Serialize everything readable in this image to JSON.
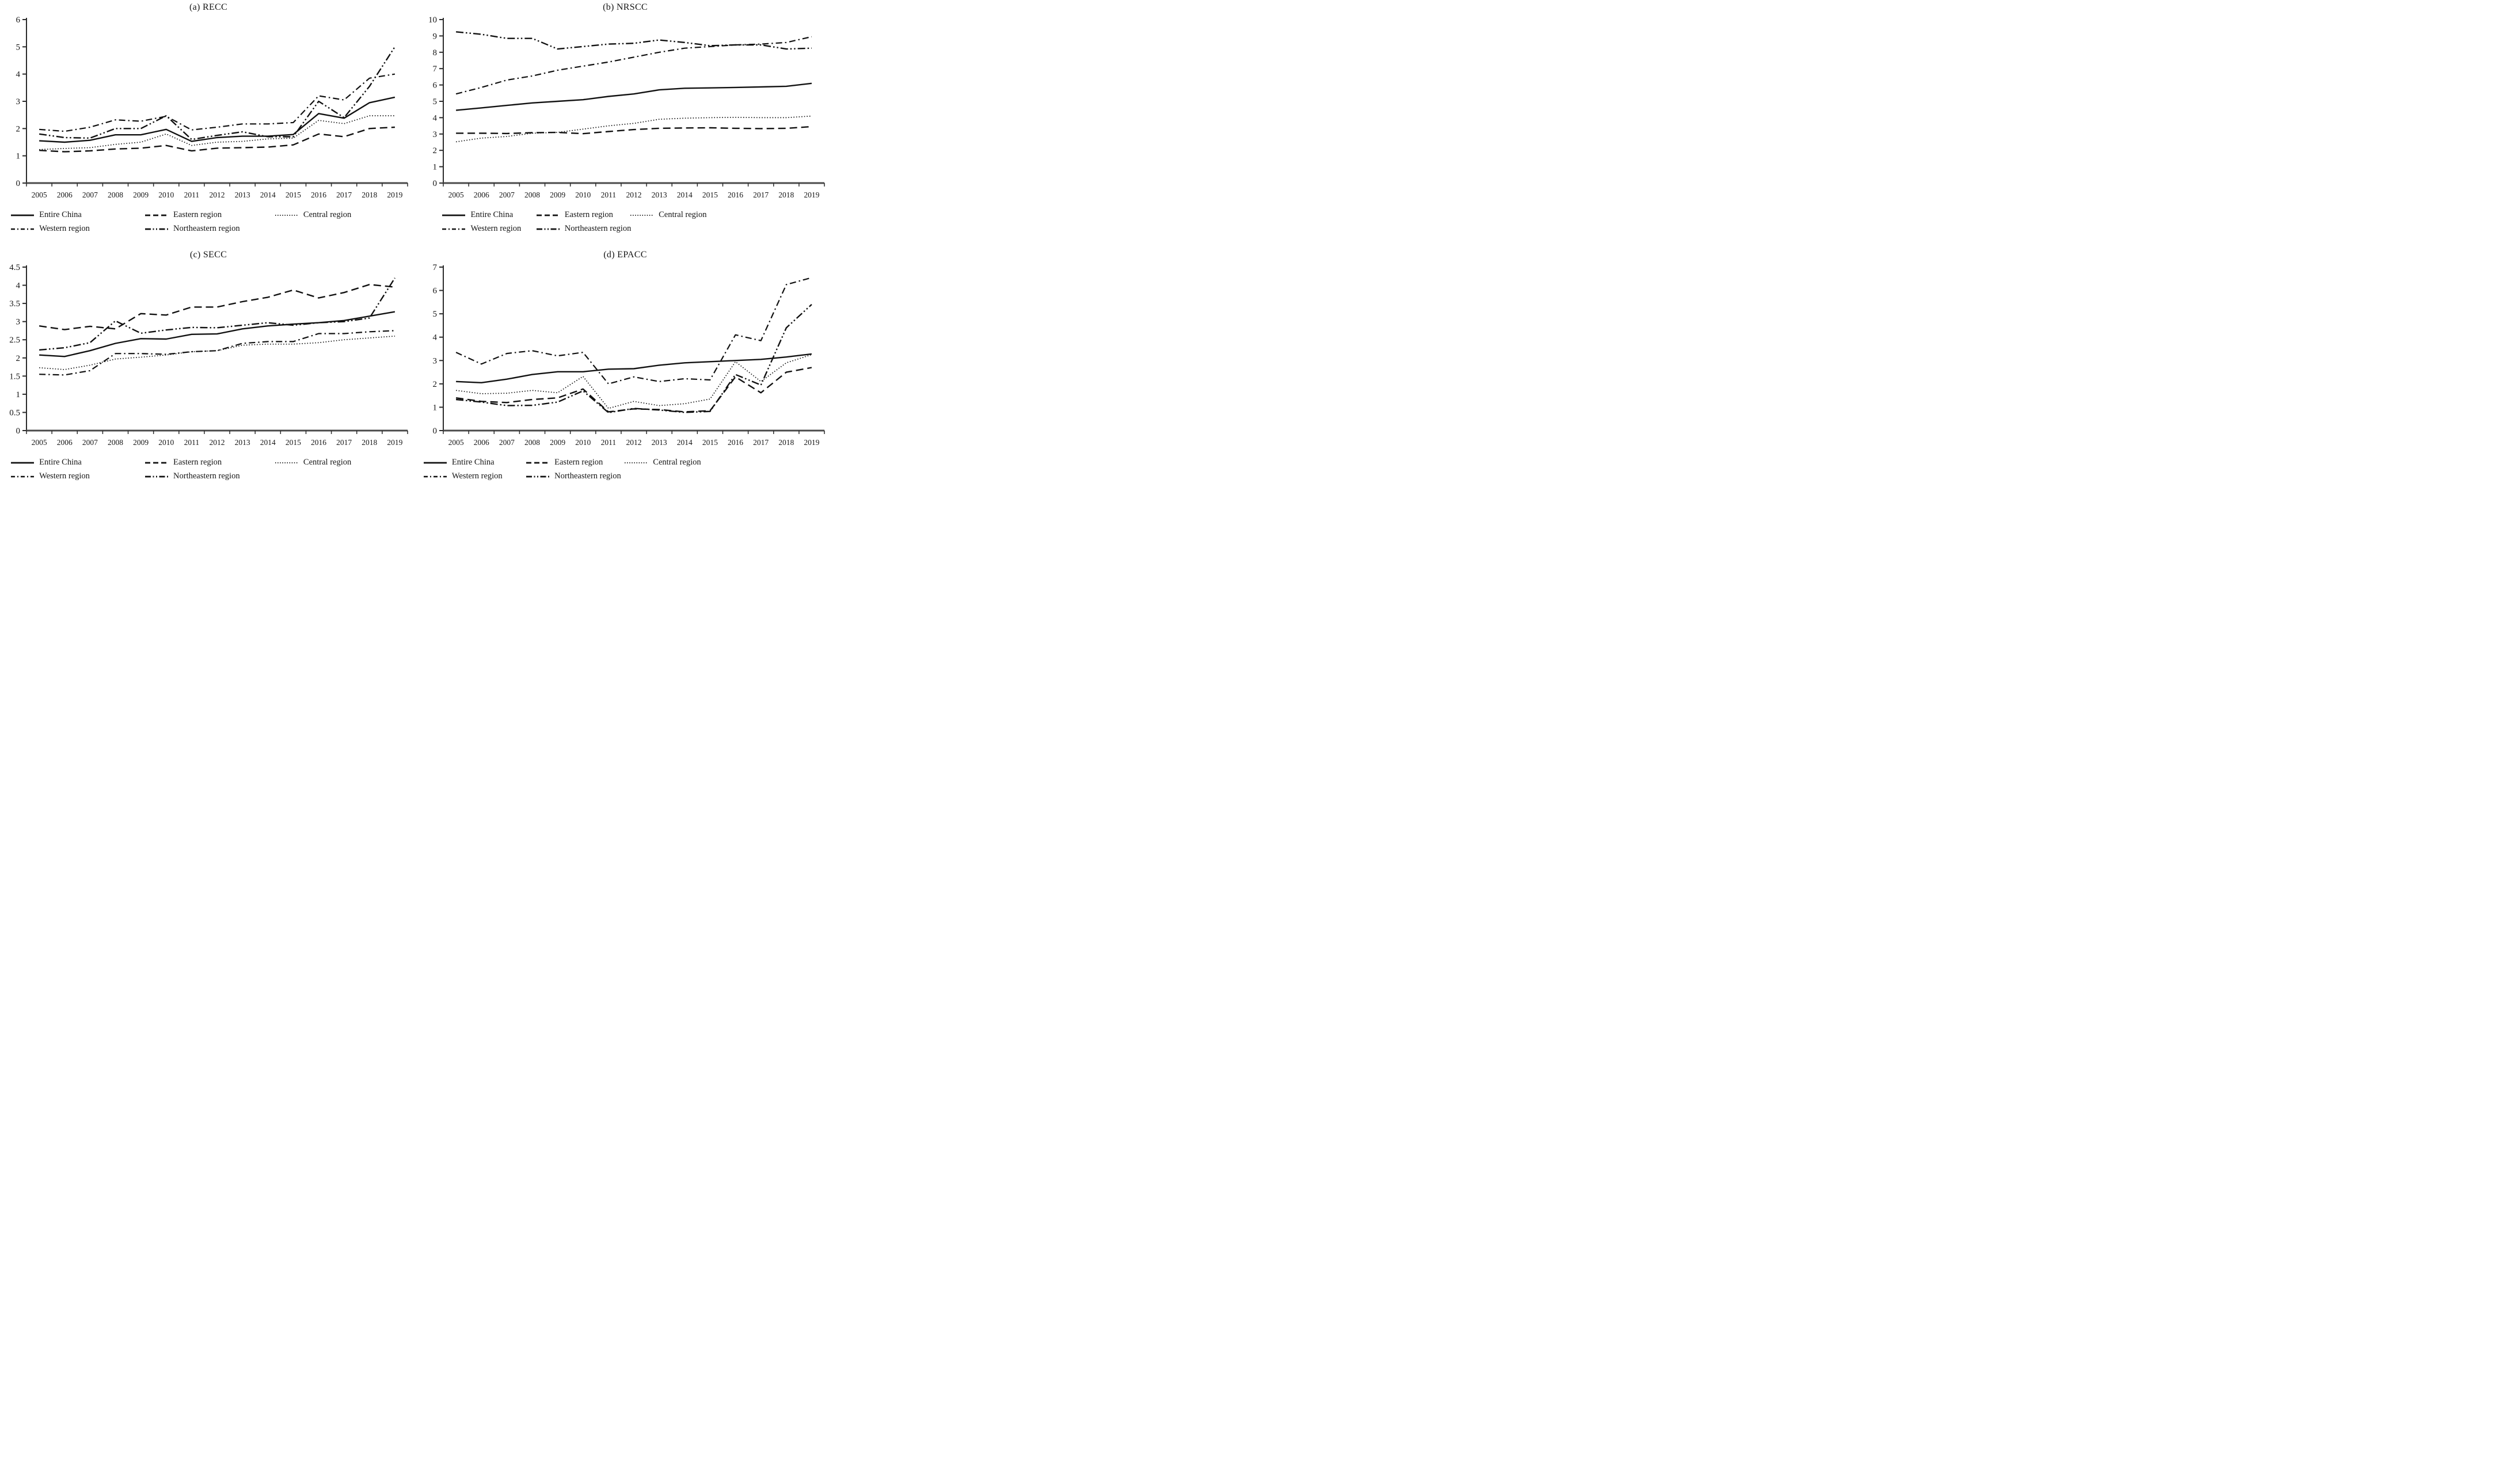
{
  "page": {
    "background": "#ffffff",
    "line_color": "#111111"
  },
  "chart_data": [
    {
      "type": "line",
      "panel": "a",
      "title": "(a) RECC",
      "x": [
        "2005",
        "2006",
        "2007",
        "2008",
        "2009",
        "2010",
        "2011",
        "2012",
        "2013",
        "2014",
        "2015",
        "2016",
        "2017",
        "2018",
        "2019"
      ],
      "ylim": [
        0,
        6
      ],
      "ytick_step": 1,
      "grid": false,
      "legend_position": "below",
      "series": [
        {
          "name": "Entire China",
          "line_style": "solid",
          "values": [
            1.55,
            1.5,
            1.57,
            1.77,
            1.77,
            1.97,
            1.53,
            1.67,
            1.72,
            1.72,
            1.78,
            2.55,
            2.38,
            2.95,
            3.15
          ]
        },
        {
          "name": "Eastern region",
          "line_style": "dashed",
          "values": [
            1.2,
            1.15,
            1.18,
            1.25,
            1.28,
            1.38,
            1.18,
            1.28,
            1.3,
            1.32,
            1.4,
            1.8,
            1.7,
            2.0,
            2.05
          ]
        },
        {
          "name": "Central region",
          "line_style": "dotted",
          "values": [
            1.23,
            1.27,
            1.3,
            1.42,
            1.5,
            1.8,
            1.38,
            1.5,
            1.53,
            1.62,
            1.65,
            2.3,
            2.18,
            2.47,
            2.47
          ]
        },
        {
          "name": "Western region",
          "line_style": "dash-dot",
          "values": [
            1.97,
            1.9,
            2.05,
            2.32,
            2.27,
            2.45,
            1.95,
            2.05,
            2.17,
            2.17,
            2.22,
            3.2,
            3.05,
            3.85,
            4.0
          ]
        },
        {
          "name": "Northeastern region",
          "line_style": "dash-dot-dot",
          "values": [
            1.8,
            1.67,
            1.65,
            2.0,
            2.0,
            2.47,
            1.6,
            1.75,
            1.88,
            1.7,
            1.7,
            3.0,
            2.4,
            3.55,
            5.0
          ]
        }
      ]
    },
    {
      "type": "line",
      "panel": "b",
      "title": "(b) NRSCC",
      "x": [
        "2005",
        "2006",
        "2007",
        "2008",
        "2009",
        "2010",
        "2011",
        "2012",
        "2013",
        "2014",
        "2015",
        "2016",
        "2017",
        "2018",
        "2019"
      ],
      "ylim": [
        0,
        10
      ],
      "ytick_step": 1,
      "grid": false,
      "legend_position": "below",
      "series": [
        {
          "name": "Entire China",
          "line_style": "solid",
          "values": [
            4.45,
            4.6,
            4.75,
            4.9,
            5.0,
            5.1,
            5.3,
            5.45,
            5.7,
            5.8,
            5.82,
            5.85,
            5.88,
            5.92,
            6.1
          ]
        },
        {
          "name": "Eastern region",
          "line_style": "dashed",
          "values": [
            3.05,
            3.05,
            3.03,
            3.08,
            3.1,
            3.02,
            3.15,
            3.27,
            3.35,
            3.37,
            3.38,
            3.35,
            3.33,
            3.35,
            3.45
          ]
        },
        {
          "name": "Central region",
          "line_style": "dotted",
          "values": [
            2.52,
            2.75,
            2.85,
            3.05,
            3.1,
            3.3,
            3.5,
            3.65,
            3.9,
            3.97,
            4.0,
            4.02,
            4.0,
            4.0,
            4.1
          ]
        },
        {
          "name": "Western region",
          "line_style": "dash-dot",
          "values": [
            5.45,
            5.85,
            6.3,
            6.55,
            6.9,
            7.15,
            7.4,
            7.7,
            8.0,
            8.25,
            8.35,
            8.45,
            8.5,
            8.6,
            8.95
          ]
        },
        {
          "name": "Northeastern region",
          "line_style": "dash-dot-dot",
          "values": [
            9.25,
            9.1,
            8.85,
            8.85,
            8.2,
            8.35,
            8.5,
            8.55,
            8.75,
            8.6,
            8.4,
            8.45,
            8.45,
            8.2,
            8.25
          ]
        }
      ]
    },
    {
      "type": "line",
      "panel": "c",
      "title": "(c) SECC",
      "x": [
        "2005",
        "2006",
        "2007",
        "2008",
        "2009",
        "2010",
        "2011",
        "2012",
        "2013",
        "2014",
        "2015",
        "2016",
        "2017",
        "2018",
        "2019"
      ],
      "ylim": [
        0,
        4.5
      ],
      "ytick_step": 0.5,
      "grid": false,
      "legend_position": "below",
      "series": [
        {
          "name": "Entire China",
          "line_style": "solid",
          "values": [
            2.08,
            2.04,
            2.2,
            2.4,
            2.53,
            2.52,
            2.65,
            2.66,
            2.8,
            2.88,
            2.93,
            2.97,
            3.03,
            3.15,
            3.27
          ]
        },
        {
          "name": "Eastern region",
          "line_style": "dashed",
          "values": [
            2.88,
            2.78,
            2.87,
            2.8,
            3.22,
            3.18,
            3.4,
            3.4,
            3.55,
            3.67,
            3.87,
            3.65,
            3.8,
            4.02,
            3.95
          ]
        },
        {
          "name": "Central region",
          "line_style": "dotted",
          "values": [
            1.73,
            1.68,
            1.8,
            1.97,
            2.02,
            2.08,
            2.17,
            2.2,
            2.35,
            2.38,
            2.38,
            2.42,
            2.5,
            2.55,
            2.6
          ]
        },
        {
          "name": "Western region",
          "line_style": "dash-dot",
          "values": [
            1.55,
            1.53,
            1.65,
            2.12,
            2.12,
            2.1,
            2.17,
            2.2,
            2.4,
            2.45,
            2.45,
            2.67,
            2.67,
            2.72,
            2.75
          ]
        },
        {
          "name": "Northeastern region",
          "line_style": "dash-dot-dot",
          "values": [
            2.22,
            2.28,
            2.42,
            3.02,
            2.68,
            2.77,
            2.84,
            2.83,
            2.9,
            2.97,
            2.9,
            2.97,
            3.0,
            3.1,
            4.2
          ]
        }
      ]
    },
    {
      "type": "line",
      "panel": "d",
      "title": "(d) EPACC",
      "x": [
        "2005",
        "2006",
        "2007",
        "2008",
        "2009",
        "2010",
        "2011",
        "2012",
        "2013",
        "2014",
        "2015",
        "2016",
        "2017",
        "2018",
        "2019"
      ],
      "ylim": [
        0,
        7
      ],
      "ytick_step": 1,
      "grid": false,
      "legend_position": "below",
      "series": [
        {
          "name": "Entire China",
          "line_style": "solid",
          "values": [
            2.1,
            2.05,
            2.2,
            2.4,
            2.52,
            2.52,
            2.63,
            2.65,
            2.8,
            2.9,
            2.95,
            3.0,
            3.05,
            3.15,
            3.28
          ]
        },
        {
          "name": "Eastern region",
          "line_style": "dashed",
          "values": [
            1.4,
            1.25,
            1.2,
            1.33,
            1.4,
            1.78,
            0.8,
            0.93,
            0.9,
            0.8,
            0.85,
            2.3,
            1.62,
            2.5,
            2.7
          ]
        },
        {
          "name": "Central region",
          "line_style": "dotted",
          "values": [
            1.72,
            1.58,
            1.6,
            1.72,
            1.62,
            2.32,
            0.95,
            1.25,
            1.07,
            1.15,
            1.35,
            2.95,
            2.1,
            2.9,
            3.25
          ]
        },
        {
          "name": "Western region",
          "line_style": "dash-dot",
          "values": [
            3.35,
            2.85,
            3.3,
            3.42,
            3.2,
            3.35,
            2.0,
            2.3,
            2.1,
            2.22,
            2.17,
            4.1,
            3.85,
            6.25,
            6.55
          ]
        },
        {
          "name": "Northeastern region",
          "line_style": "dash-dot-dot",
          "values": [
            1.33,
            1.22,
            1.07,
            1.08,
            1.22,
            1.7,
            0.77,
            0.95,
            0.88,
            0.78,
            0.82,
            2.4,
            1.95,
            4.4,
            5.4
          ]
        }
      ]
    }
  ]
}
